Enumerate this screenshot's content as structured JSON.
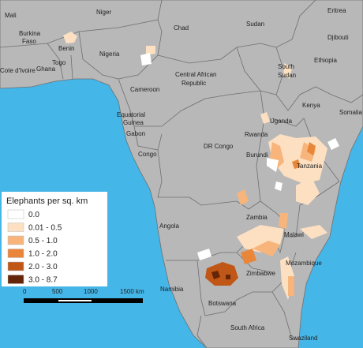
{
  "map": {
    "labels": [
      "Mali",
      "Niger",
      "Chad",
      "Sudan",
      "Eritrea",
      "Djibouti",
      [
        "Burkina",
        "Faso"
      ],
      "Benin",
      "Nigeria",
      "Togo",
      "Cote d'Ivoire",
      "Ghana",
      "Ethiopia",
      [
        "South",
        "Sudan"
      ],
      [
        "Central African",
        "Republic"
      ],
      "Cameroon",
      "Kenya",
      "Somalia",
      "Uganda",
      [
        "Equatorial",
        "Guinea"
      ],
      "Gabon",
      "Congo",
      "DR Congo",
      "Rwanda",
      "Burundi",
      "Tanzania",
      "Angola",
      "Zambia",
      "Malawi",
      "Mozambique",
      "Namibia",
      "Zimbabwe",
      "Botswana",
      "South Africa",
      "Swaziland"
    ]
  },
  "legend": {
    "title": "Elephants per sq. km",
    "items": [
      {
        "label": "0.0",
        "color": "#ffffff"
      },
      {
        "label": "0.01 - 0.5",
        "color": "#fde0c2"
      },
      {
        "label": "0.5 - 1.0",
        "color": "#f7b57c"
      },
      {
        "label": "1.0 - 2.0",
        "color": "#e9863a"
      },
      {
        "label": "2.0 - 3.0",
        "color": "#c05716"
      },
      {
        "label": "3.0 - 8.7",
        "color": "#652508"
      }
    ]
  },
  "scale_bar": {
    "labels": [
      "0",
      "500",
      "1000",
      "1500 km"
    ]
  }
}
